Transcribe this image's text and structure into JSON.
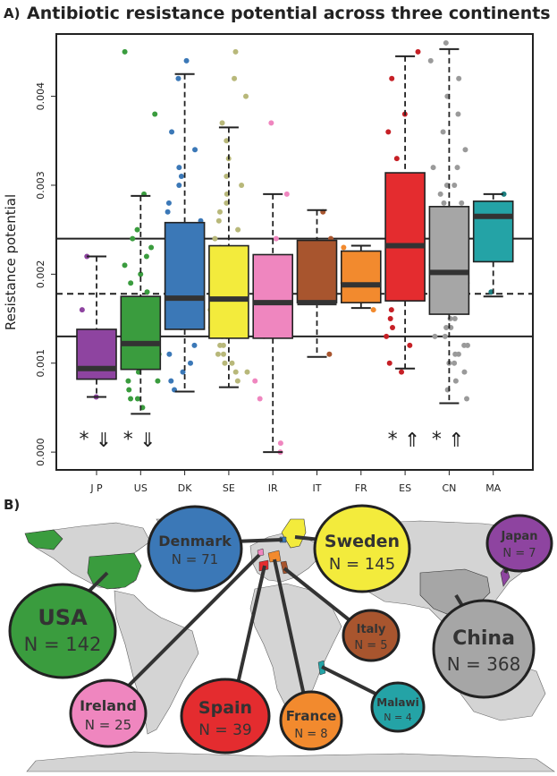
{
  "panel_a_label": "A)",
  "panel_b_label": "B)",
  "chart_data": {
    "type": "box",
    "title": "Antibiotic resistance potential across three continents",
    "ylabel": "Resistance potential",
    "xlabel": "",
    "ylim": [
      -0.0002,
      0.0047
    ],
    "yticks": [
      0.0,
      0.001,
      0.002,
      0.003,
      0.004
    ],
    "ytick_labels": [
      "0.000",
      "0.001",
      "0.002",
      "0.003",
      "0.004"
    ],
    "grid": false,
    "reference_lines": {
      "upper": 0.0024,
      "median": 0.00178,
      "lower": 0.0013
    },
    "groups": [
      {
        "label": "JP",
        "color": "#8e44a0",
        "q1": 0.00082,
        "median": 0.00094,
        "q3": 0.00138,
        "whisker_low": 0.00062,
        "whisker_high": 0.0022,
        "marker": "*",
        "arrow": "down",
        "points": [
          0.00062,
          0.0009,
          0.0016,
          0.0022,
          0.0011,
          0.0009
        ]
      },
      {
        "label": "US",
        "color": "#3a9c3e",
        "q1": 0.00093,
        "median": 0.00122,
        "q3": 0.00175,
        "whisker_low": 0.00043,
        "whisker_high": 0.00288,
        "marker": "*",
        "arrow": "down",
        "points": [
          0.0045,
          0.0038,
          0.0029,
          0.0025,
          0.0024,
          0.0023,
          0.0022,
          0.0021,
          0.002,
          0.0019,
          0.0018,
          0.0017,
          0.0016,
          0.0015,
          0.0014,
          0.0013,
          0.0012,
          0.0011,
          0.001,
          0.0009,
          0.0008,
          0.0007,
          0.0006,
          0.0005,
          0.0012,
          0.0016,
          0.0008,
          0.0011,
          0.0014,
          0.0006
        ]
      },
      {
        "label": "DK",
        "color": "#3b78b7",
        "q1": 0.00138,
        "median": 0.00173,
        "q3": 0.00258,
        "whisker_low": 0.00068,
        "whisker_high": 0.00425,
        "marker": "",
        "arrow": "",
        "points": [
          0.0044,
          0.0042,
          0.0036,
          0.0034,
          0.0032,
          0.003,
          0.0028,
          0.0026,
          0.0024,
          0.0022,
          0.002,
          0.0018,
          0.0016,
          0.0014,
          0.0012,
          0.001,
          0.0008,
          0.0007,
          0.0009,
          0.0011,
          0.0027,
          0.0031
        ]
      },
      {
        "label": "SE",
        "color": "#f3eb3c",
        "pointColor": "#b8b87a",
        "q1": 0.00128,
        "median": 0.00172,
        "q3": 0.00232,
        "whisker_low": 0.00073,
        "whisker_high": 0.00365,
        "marker": "",
        "arrow": "",
        "points": [
          0.0045,
          0.0042,
          0.004,
          0.0037,
          0.0035,
          0.0033,
          0.0031,
          0.003,
          0.0029,
          0.0028,
          0.0027,
          0.0026,
          0.0025,
          0.0024,
          0.0023,
          0.0022,
          0.0021,
          0.002,
          0.0019,
          0.0018,
          0.0017,
          0.0016,
          0.0015,
          0.0014,
          0.0013,
          0.0012,
          0.0011,
          0.001,
          0.0009,
          0.0008,
          0.0012,
          0.0014,
          0.0016,
          0.0011,
          0.001,
          0.0013,
          0.0015,
          0.0009
        ]
      },
      {
        "label": "IR",
        "color": "#ef86bf",
        "q1": 0.00128,
        "median": 0.00168,
        "q3": 0.00222,
        "whisker_low": 0.0,
        "whisker_high": 0.0029,
        "marker": "",
        "arrow": "",
        "points": [
          0.0037,
          0.0029,
          0.0024,
          0.0022,
          0.0019,
          0.0017,
          0.0015,
          0.0013,
          0.0008,
          0.0006,
          0.0001,
          0.0
        ]
      },
      {
        "label": "IT",
        "color": "#a8552e",
        "q1": 0.00168,
        "median": 0.00168,
        "q3": 0.00238,
        "whisker_low": 0.00107,
        "whisker_high": 0.00272,
        "marker": "",
        "arrow": "",
        "points": [
          0.0027,
          0.0024,
          0.0017,
          0.0011,
          0.0017
        ]
      },
      {
        "label": "FR",
        "color": "#f28a2e",
        "q1": 0.00168,
        "median": 0.00188,
        "q3": 0.00226,
        "whisker_low": 0.00162,
        "whisker_high": 0.00232,
        "marker": "",
        "arrow": "",
        "points": [
          0.0023,
          0.0022,
          0.0019,
          0.0017,
          0.0016
        ]
      },
      {
        "label": "ES",
        "color": "#e42c2f",
        "pointColor": "#c62026",
        "q1": 0.0017,
        "median": 0.00232,
        "q3": 0.00314,
        "whisker_low": 0.00094,
        "whisker_high": 0.00445,
        "marker": "*",
        "arrow": "up",
        "points": [
          0.0045,
          0.0042,
          0.0038,
          0.0036,
          0.0033,
          0.003,
          0.0028,
          0.0025,
          0.0022,
          0.002,
          0.0018,
          0.0016,
          0.0014,
          0.0013,
          0.0012,
          0.001,
          0.0009,
          0.0015,
          0.0024
        ]
      },
      {
        "label": "CN",
        "color": "#a6a6a6",
        "pointColor": "#9a9a9a",
        "q1": 0.00155,
        "median": 0.00202,
        "q3": 0.00276,
        "whisker_low": 0.00055,
        "whisker_high": 0.00453,
        "marker": "*",
        "arrow": "up",
        "points": [
          0.0046,
          0.0044,
          0.0042,
          0.004,
          0.0038,
          0.0036,
          0.0034,
          0.0032,
          0.003,
          0.0029,
          0.0028,
          0.0027,
          0.0026,
          0.0025,
          0.0024,
          0.0023,
          0.0022,
          0.0021,
          0.002,
          0.0019,
          0.0018,
          0.0017,
          0.0016,
          0.0015,
          0.0014,
          0.0013,
          0.0012,
          0.0011,
          0.001,
          0.0009,
          0.0008,
          0.0007,
          0.0006,
          0.0026,
          0.0024,
          0.0022,
          0.002,
          0.0018,
          0.0016,
          0.0014,
          0.0012,
          0.001,
          0.0028,
          0.003,
          0.0032,
          0.0019,
          0.0017,
          0.0015,
          0.0013,
          0.0011
        ]
      },
      {
        "label": "MA",
        "color": "#24a3a6",
        "pointColor": "#1b7f80",
        "q1": 0.00214,
        "median": 0.00265,
        "q3": 0.00282,
        "whisker_low": 0.00175,
        "whisker_high": 0.0029,
        "marker": "",
        "arrow": "",
        "points": [
          0.0029,
          0.0028,
          0.0018,
          0.0025
        ]
      }
    ]
  },
  "map": {
    "bubbles": [
      {
        "name": "Denmark",
        "n": "N = 71",
        "color": "#3b78b7"
      },
      {
        "name": "Sweden",
        "n": "N = 145",
        "color": "#f3eb3c"
      },
      {
        "name": "Japan",
        "n": "N = 7",
        "color": "#8e44a0"
      },
      {
        "name": "USA",
        "n": "N = 142",
        "color": "#3a9c3e"
      },
      {
        "name": "Italy",
        "n": "N = 5",
        "color": "#a8552e"
      },
      {
        "name": "China",
        "n": "N = 368",
        "color": "#a6a6a6"
      },
      {
        "name": "Ireland",
        "n": "N = 25",
        "color": "#ef86bf"
      },
      {
        "name": "Spain",
        "n": "N = 39",
        "color": "#e42c2f"
      },
      {
        "name": "France",
        "n": "N = 8",
        "color": "#f28a2e"
      },
      {
        "name": "Malawi",
        "n": "N = 4",
        "color": "#24a3a6"
      }
    ]
  }
}
